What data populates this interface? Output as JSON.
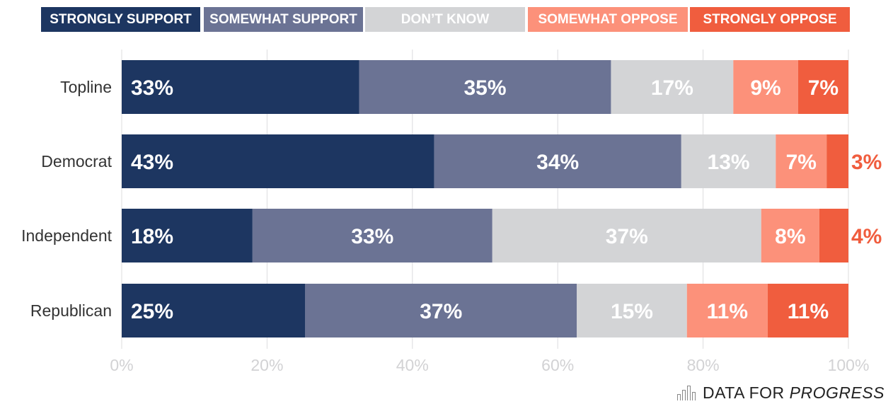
{
  "chart_data": {
    "type": "bar",
    "orientation": "horizontal",
    "stacked": true,
    "categories": [
      "Topline",
      "Democrat",
      "Independent",
      "Republican"
    ],
    "series": [
      {
        "name": "STRONGLY SUPPORT",
        "color": "#1d3661",
        "values": [
          33,
          43,
          18,
          25
        ]
      },
      {
        "name": "SOMEWHAT SUPPORT",
        "color": "#6b7394",
        "values": [
          35,
          34,
          33,
          37
        ]
      },
      {
        "name": "DON’T KNOW",
        "color": "#d3d4d6",
        "values": [
          17,
          13,
          37,
          15
        ]
      },
      {
        "name": "SOMEWHAT OPPOSE",
        "color": "#fc917a",
        "values": [
          9,
          7,
          8,
          11
        ]
      },
      {
        "name": "STRONGLY OPPOSE",
        "color": "#f05d3e",
        "values": [
          7,
          3,
          4,
          11
        ]
      }
    ],
    "xlim": [
      0,
      100
    ],
    "x_ticks": [
      "0%",
      "20%",
      "40%",
      "60%",
      "80%",
      "100%"
    ],
    "value_suffix": "%",
    "grid": true,
    "legend_position": "top"
  },
  "brand": {
    "light": "DATA FOR",
    "strong": "PROGRESS"
  }
}
